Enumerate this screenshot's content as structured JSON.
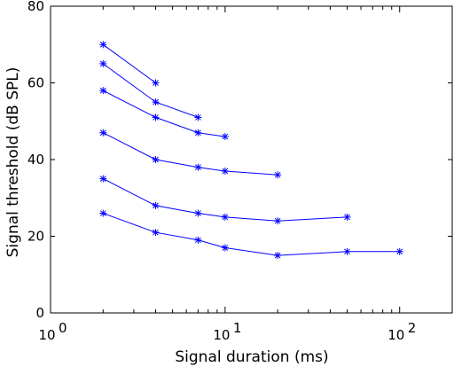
{
  "chart_data": {
    "type": "line",
    "title": "",
    "xlabel": "Signal duration (ms)",
    "ylabel": "Signal threshold (dB SPL)",
    "xscale": "log",
    "xlim": [
      1,
      200
    ],
    "ylim": [
      0,
      80
    ],
    "grid": false,
    "legend": "none",
    "marker": "asterisk",
    "line_color": "#0000ff",
    "x_ticks": [
      {
        "value": 1,
        "base": "10",
        "exp": "0"
      },
      {
        "value": 10,
        "base": "10",
        "exp": "1"
      },
      {
        "value": 100,
        "base": "10",
        "exp": "2"
      }
    ],
    "y_ticks": [
      {
        "value": 0,
        "label": "0"
      },
      {
        "value": 20,
        "label": "20"
      },
      {
        "value": 40,
        "label": "40"
      },
      {
        "value": 60,
        "label": "60"
      },
      {
        "value": 80,
        "label": "80"
      }
    ],
    "series": [
      {
        "x": [
          2,
          4
        ],
        "y": [
          70,
          60
        ]
      },
      {
        "x": [
          2,
          4,
          7
        ],
        "y": [
          65,
          55,
          51
        ]
      },
      {
        "x": [
          2,
          4,
          7,
          10
        ],
        "y": [
          58,
          51,
          47,
          46
        ]
      },
      {
        "x": [
          2,
          4,
          7,
          10,
          20
        ],
        "y": [
          47,
          40,
          38,
          37,
          36
        ]
      },
      {
        "x": [
          2,
          4,
          7,
          10,
          20,
          50
        ],
        "y": [
          35,
          28,
          26,
          25,
          24,
          25
        ]
      },
      {
        "x": [
          2,
          4,
          7,
          10,
          20,
          50,
          100
        ],
        "y": [
          26,
          21,
          19,
          17,
          15,
          16,
          16
        ]
      }
    ]
  }
}
